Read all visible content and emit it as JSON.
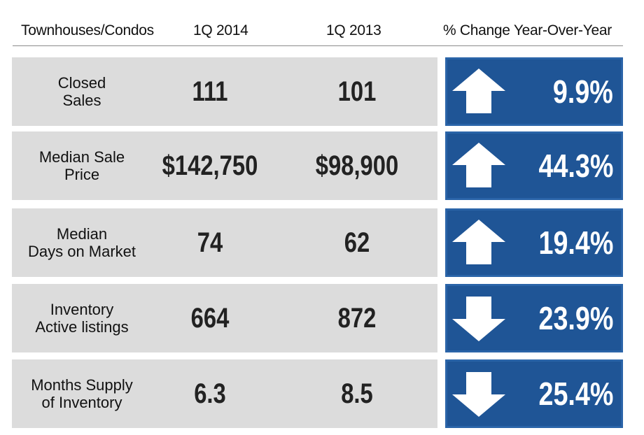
{
  "header": {
    "label": "Townhouses/Condos",
    "col1": "1Q 2014",
    "col2": "1Q 2013",
    "col3": "% Change Year-Over-Year"
  },
  "rows": [
    {
      "label_line1": "Closed",
      "label_line2": "Sales",
      "v2014": "111",
      "v2013": "101",
      "change": "9.9%",
      "direction": "up"
    },
    {
      "label_line1": "Median Sale",
      "label_line2": "Price",
      "v2014": "$142,750",
      "v2013": "$98,900",
      "change": "44.3%",
      "direction": "up"
    },
    {
      "label_line1": "Median",
      "label_line2": "Days on Market",
      "v2014": "74",
      "v2013": "62",
      "change": "19.4%",
      "direction": "up"
    },
    {
      "label_line1": "Inventory",
      "label_line2": "Active listings",
      "v2014": "664",
      "v2013": "872",
      "change": "23.9%",
      "direction": "down"
    },
    {
      "label_line1": "Months Supply",
      "label_line2": "of Inventory",
      "v2014": "6.3",
      "v2013": "8.5",
      "change": "25.4%",
      "direction": "down"
    }
  ],
  "colors": {
    "row_background": "#dcdcdc",
    "change_background": "#1f5596",
    "arrow": "#ffffff"
  }
}
